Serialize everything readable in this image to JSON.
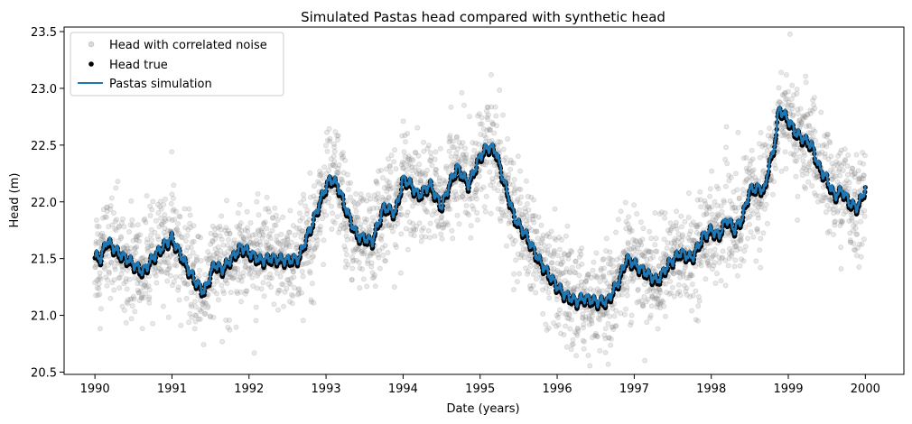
{
  "chart_data": {
    "type": "line",
    "title": "Simulated Pastas head compared with synthetic head",
    "xlabel": "Date (years)",
    "ylabel": "Head (m)",
    "xlim": [
      1989.6,
      2000.5
    ],
    "ylim": [
      20.48,
      23.54
    ],
    "x_ticks": [
      1990,
      1991,
      1992,
      1993,
      1994,
      1995,
      1996,
      1997,
      1998,
      1999,
      2000
    ],
    "y_ticks": [
      20.5,
      21.0,
      21.5,
      22.0,
      22.5,
      23.0,
      23.5
    ],
    "grid": false,
    "legend_position": "top-left",
    "series": [
      {
        "name": "Head with correlated noise",
        "style": "scatter",
        "color": "#808080",
        "note": "noisy observations scattered around true head (about ±0.4 m)"
      },
      {
        "name": "Head true",
        "style": "dots",
        "color": "#000000"
      },
      {
        "name": "Pastas simulation",
        "style": "line",
        "color": "#1f77b4"
      }
    ],
    "trend": {
      "x": [
        1990.0,
        1990.08,
        1990.15,
        1990.3,
        1990.5,
        1990.62,
        1990.75,
        1990.9,
        1991.0,
        1991.1,
        1991.2,
        1991.3,
        1991.42,
        1991.55,
        1991.65,
        1991.75,
        1991.9,
        1992.0,
        1992.15,
        1992.3,
        1992.5,
        1992.65,
        1992.7,
        1992.82,
        1992.95,
        1993.05,
        1993.15,
        1993.25,
        1993.4,
        1993.6,
        1993.75,
        1993.9,
        1994.0,
        1994.1,
        1994.2,
        1994.35,
        1994.5,
        1994.6,
        1994.7,
        1994.85,
        1995.0,
        1995.1,
        1995.2,
        1995.3,
        1995.45,
        1995.6,
        1995.75,
        1995.9,
        1996.0,
        1996.1,
        1996.25,
        1996.35,
        1996.5,
        1996.65,
        1996.8,
        1996.9,
        1997.0,
        1997.1,
        1997.2,
        1997.3,
        1997.45,
        1997.6,
        1997.75,
        1997.9,
        1998.0,
        1998.1,
        1998.2,
        1998.3,
        1998.4,
        1998.5,
        1998.6,
        1998.7,
        1998.75,
        1998.8,
        1998.88,
        1999.0,
        1999.1,
        1999.2,
        1999.3,
        1999.4,
        1999.5,
        1999.6,
        1999.7,
        1999.8,
        1999.9,
        2000.0
      ],
      "y": [
        21.52,
        21.5,
        21.66,
        21.55,
        21.45,
        21.38,
        21.5,
        21.62,
        21.68,
        21.55,
        21.42,
        21.3,
        21.2,
        21.45,
        21.4,
        21.48,
        21.6,
        21.55,
        21.48,
        21.5,
        21.48,
        21.5,
        21.6,
        21.8,
        22.05,
        22.2,
        22.15,
        21.95,
        21.7,
        21.65,
        21.95,
        21.9,
        22.2,
        22.15,
        22.05,
        22.15,
        21.95,
        22.15,
        22.3,
        22.15,
        22.4,
        22.48,
        22.45,
        22.2,
        21.85,
        21.7,
        21.5,
        21.35,
        21.25,
        21.18,
        21.12,
        21.15,
        21.12,
        21.12,
        21.3,
        21.5,
        21.45,
        21.4,
        21.35,
        21.3,
        21.45,
        21.55,
        21.5,
        21.7,
        21.75,
        21.7,
        21.85,
        21.75,
        21.85,
        22.1,
        22.12,
        22.1,
        22.35,
        22.4,
        22.82,
        22.72,
        22.6,
        22.55,
        22.5,
        22.3,
        22.2,
        22.05,
        22.1,
        21.98,
        21.95,
        22.12
      ]
    }
  }
}
